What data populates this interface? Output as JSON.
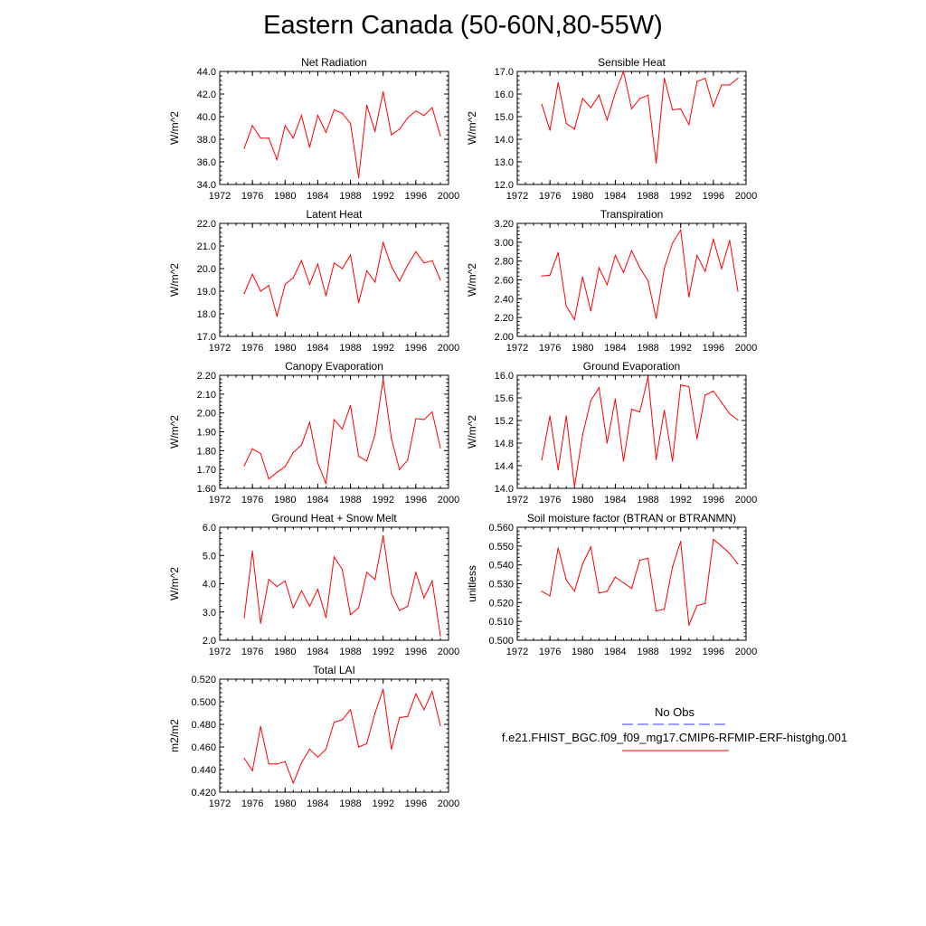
{
  "title": "Eastern Canada (50-60N,80-55W)",
  "line_color": "#ff0000",
  "obs_color": "#3b3bff",
  "legend": {
    "obs_label": "No Obs",
    "model_label": "f.e21.FHIST_BGC.f09_f09_mg17.CMIP6-RFMIP-ERF-histghg.001"
  },
  "chart_data": [
    {
      "type": "line",
      "title": "Net Radiation",
      "xlabel": "",
      "ylabel": "W/m^2",
      "xlim": [
        1972,
        2000
      ],
      "ylim": [
        34,
        44
      ],
      "xticks": [
        "1972",
        "1976",
        "1980",
        "1984",
        "1988",
        "1992",
        "1996",
        "2000"
      ],
      "yticks": [
        "34.0",
        "36.0",
        "38.0",
        "40.0",
        "42.0",
        "44.0"
      ],
      "x": [
        1975,
        1976,
        1977,
        1978,
        1979,
        1980,
        1981,
        1982,
        1983,
        1984,
        1985,
        1986,
        1987,
        1988,
        1989,
        1990,
        1991,
        1992,
        1993,
        1994,
        1995,
        1996,
        1997,
        1998,
        1999
      ],
      "values": [
        37.2,
        39.2,
        38.1,
        38.1,
        36.2,
        39.2,
        38.1,
        40.1,
        37.3,
        40.1,
        38.6,
        40.6,
        40.3,
        39.4,
        34.6,
        41.0,
        38.7,
        42.2,
        38.4,
        38.9,
        39.9,
        40.5,
        40.1,
        40.8,
        38.3
      ]
    },
    {
      "type": "line",
      "title": "Sensible Heat",
      "xlabel": "",
      "ylabel": "W/m^2",
      "xlim": [
        1972,
        2000
      ],
      "ylim": [
        12,
        17
      ],
      "xticks": [
        "1972",
        "1976",
        "1980",
        "1984",
        "1988",
        "1992",
        "1996",
        "2000"
      ],
      "yticks": [
        "12.0",
        "13.0",
        "14.0",
        "15.0",
        "16.0",
        "17.0"
      ],
      "x": [
        1975,
        1976,
        1977,
        1978,
        1979,
        1980,
        1981,
        1982,
        1983,
        1984,
        1985,
        1986,
        1987,
        1988,
        1989,
        1990,
        1991,
        1992,
        1993,
        1994,
        1995,
        1996,
        1997,
        1998,
        1999
      ],
      "values": [
        15.55,
        14.4,
        16.5,
        14.7,
        14.45,
        15.8,
        15.4,
        15.95,
        14.85,
        16.05,
        17.0,
        15.35,
        15.8,
        15.95,
        12.95,
        16.7,
        15.3,
        15.35,
        14.65,
        16.55,
        16.7,
        15.45,
        16.4,
        16.4,
        16.7
      ]
    },
    {
      "type": "line",
      "title": "Latent Heat",
      "xlabel": "",
      "ylabel": "W/m^2",
      "xlim": [
        1972,
        2000
      ],
      "ylim": [
        17,
        22
      ],
      "xticks": [
        "1972",
        "1976",
        "1980",
        "1984",
        "1988",
        "1992",
        "1996",
        "2000"
      ],
      "yticks": [
        "17.0",
        "18.0",
        "19.0",
        "20.0",
        "21.0",
        "22.0"
      ],
      "x": [
        1975,
        1976,
        1977,
        1978,
        1979,
        1980,
        1981,
        1982,
        1983,
        1984,
        1985,
        1986,
        1987,
        1988,
        1989,
        1990,
        1991,
        1992,
        1993,
        1994,
        1995,
        1996,
        1997,
        1998,
        1999
      ],
      "values": [
        18.9,
        19.75,
        19.0,
        19.25,
        17.9,
        19.3,
        19.6,
        20.35,
        19.3,
        20.2,
        18.8,
        20.25,
        20.0,
        20.6,
        18.5,
        19.9,
        19.4,
        21.15,
        20.1,
        19.45,
        20.15,
        20.75,
        20.25,
        20.35,
        19.5
      ]
    },
    {
      "type": "line",
      "title": "Transpiration",
      "xlabel": "",
      "ylabel": "W/m^2",
      "xlim": [
        1972,
        2000
      ],
      "ylim": [
        2.0,
        3.2
      ],
      "xticks": [
        "1972",
        "1976",
        "1980",
        "1984",
        "1988",
        "1992",
        "1996",
        "2000"
      ],
      "yticks": [
        "2.00",
        "2.20",
        "2.40",
        "2.60",
        "2.80",
        "3.00",
        "3.20"
      ],
      "x": [
        1975,
        1976,
        1977,
        1978,
        1979,
        1980,
        1981,
        1982,
        1983,
        1984,
        1985,
        1986,
        1987,
        1988,
        1989,
        1990,
        1991,
        1992,
        1993,
        1994,
        1995,
        1996,
        1997,
        1998,
        1999
      ],
      "values": [
        2.64,
        2.65,
        2.89,
        2.32,
        2.18,
        2.63,
        2.27,
        2.73,
        2.55,
        2.86,
        2.68,
        2.91,
        2.73,
        2.59,
        2.19,
        2.72,
        2.99,
        3.13,
        2.42,
        2.86,
        2.69,
        3.03,
        2.72,
        3.02,
        2.48
      ]
    },
    {
      "type": "line",
      "title": "Canopy Evaporation",
      "xlabel": "",
      "ylabel": "W/m^2",
      "xlim": [
        1972,
        2000
      ],
      "ylim": [
        1.6,
        2.2
      ],
      "xticks": [
        "1972",
        "1976",
        "1980",
        "1984",
        "1988",
        "1992",
        "1996",
        "2000"
      ],
      "yticks": [
        "1.60",
        "1.70",
        "1.80",
        "1.90",
        "2.00",
        "2.10",
        "2.20"
      ],
      "x": [
        1975,
        1976,
        1977,
        1978,
        1979,
        1980,
        1981,
        1982,
        1983,
        1984,
        1985,
        1986,
        1987,
        1988,
        1989,
        1990,
        1991,
        1992,
        1993,
        1994,
        1995,
        1996,
        1997,
        1998,
        1999
      ],
      "values": [
        1.72,
        1.81,
        1.785,
        1.65,
        1.685,
        1.715,
        1.79,
        1.83,
        1.95,
        1.735,
        1.625,
        1.965,
        1.915,
        2.04,
        1.77,
        1.745,
        1.885,
        2.18,
        1.865,
        1.7,
        1.75,
        1.97,
        1.965,
        2.005,
        1.815
      ]
    },
    {
      "type": "line",
      "title": "Ground Evaporation",
      "xlabel": "",
      "ylabel": "W/m^2",
      "xlim": [
        1972,
        2000
      ],
      "ylim": [
        14.0,
        16.0
      ],
      "xticks": [
        "1972",
        "1976",
        "1980",
        "1984",
        "1988",
        "1992",
        "1996",
        "2000"
      ],
      "yticks": [
        "14.0",
        "14.4",
        "14.8",
        "15.2",
        "15.6",
        "16.0"
      ],
      "x": [
        1975,
        1976,
        1977,
        1978,
        1979,
        1980,
        1981,
        1982,
        1983,
        1984,
        1985,
        1986,
        1987,
        1988,
        1989,
        1990,
        1991,
        1992,
        1993,
        1994,
        1995,
        1996,
        1997,
        1998,
        1999
      ],
      "values": [
        14.5,
        15.28,
        14.33,
        15.28,
        14.03,
        14.95,
        15.55,
        15.78,
        14.8,
        15.58,
        14.48,
        15.4,
        15.35,
        15.97,
        14.51,
        15.38,
        14.48,
        15.83,
        15.8,
        14.88,
        15.65,
        15.72,
        15.52,
        15.32,
        15.21
      ]
    },
    {
      "type": "line",
      "title": "Ground Heat + Snow Melt",
      "xlabel": "",
      "ylabel": "W/m^2",
      "xlim": [
        1972,
        2000
      ],
      "ylim": [
        2.0,
        6.0
      ],
      "xticks": [
        "1972",
        "1976",
        "1980",
        "1984",
        "1988",
        "1992",
        "1996",
        "2000"
      ],
      "yticks": [
        "2.0",
        "3.0",
        "4.0",
        "5.0",
        "6.0"
      ],
      "x": [
        1975,
        1976,
        1977,
        1978,
        1979,
        1980,
        1981,
        1982,
        1983,
        1984,
        1985,
        1986,
        1987,
        1988,
        1989,
        1990,
        1991,
        1992,
        1993,
        1994,
        1995,
        1996,
        1997,
        1998,
        1999
      ],
      "values": [
        2.8,
        5.15,
        2.6,
        4.15,
        3.9,
        4.1,
        3.15,
        3.75,
        3.2,
        3.8,
        2.8,
        4.95,
        4.5,
        2.9,
        3.15,
        4.4,
        4.15,
        5.7,
        3.65,
        3.05,
        3.2,
        4.4,
        3.5,
        4.1,
        2.15
      ]
    },
    {
      "type": "line",
      "title": "Soil moisture factor (BTRAN or BTRANMN)",
      "xlabel": "",
      "ylabel": "unitless",
      "xlim": [
        1972,
        2000
      ],
      "ylim": [
        0.5,
        0.56
      ],
      "xticks": [
        "1972",
        "1976",
        "1980",
        "1984",
        "1988",
        "1992",
        "1996",
        "2000"
      ],
      "yticks": [
        "0.500",
        "0.510",
        "0.520",
        "0.530",
        "0.540",
        "0.550",
        "0.560"
      ],
      "x": [
        1975,
        1976,
        1977,
        1978,
        1979,
        1980,
        1981,
        1982,
        1983,
        1984,
        1985,
        1986,
        1987,
        1988,
        1989,
        1990,
        1991,
        1992,
        1993,
        1994,
        1995,
        1996,
        1997,
        1998,
        1999
      ],
      "values": [
        0.526,
        0.5235,
        0.549,
        0.532,
        0.526,
        0.5405,
        0.5495,
        0.525,
        0.526,
        0.5335,
        0.5305,
        0.5275,
        0.5425,
        0.5435,
        0.5155,
        0.5165,
        0.539,
        0.5525,
        0.508,
        0.5185,
        0.5195,
        0.5535,
        0.55,
        0.546,
        0.5405
      ]
    },
    {
      "type": "line",
      "title": "Total LAI",
      "xlabel": "",
      "ylabel": "m2/m2",
      "xlim": [
        1972,
        2000
      ],
      "ylim": [
        0.42,
        0.52
      ],
      "xticks": [
        "1972",
        "1976",
        "1980",
        "1984",
        "1988",
        "1992",
        "1996",
        "2000"
      ],
      "yticks": [
        "0.420",
        "0.440",
        "0.460",
        "0.480",
        "0.500",
        "0.520"
      ],
      "x": [
        1975,
        1976,
        1977,
        1978,
        1979,
        1980,
        1981,
        1982,
        1983,
        1984,
        1985,
        1986,
        1987,
        1988,
        1989,
        1990,
        1991,
        1992,
        1993,
        1994,
        1995,
        1996,
        1997,
        1998,
        1999
      ],
      "values": [
        0.45,
        0.439,
        0.478,
        0.445,
        0.445,
        0.447,
        0.428,
        0.446,
        0.458,
        0.451,
        0.458,
        0.482,
        0.484,
        0.493,
        0.46,
        0.463,
        0.49,
        0.511,
        0.458,
        0.486,
        0.487,
        0.507,
        0.493,
        0.509,
        0.479
      ]
    }
  ]
}
